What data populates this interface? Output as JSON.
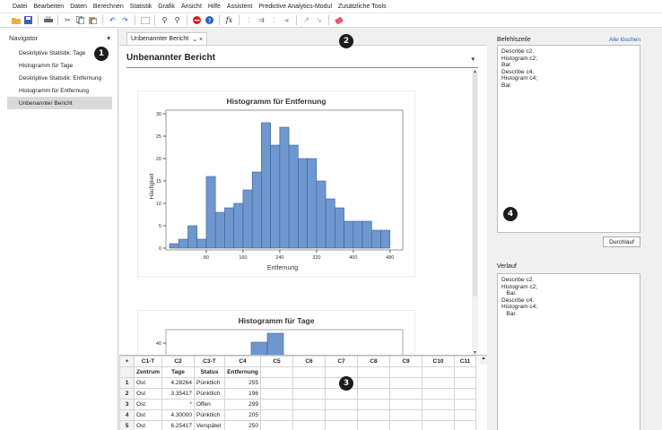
{
  "menu": [
    "Datei",
    "Bearbeiten",
    "Daten",
    "Berechnen",
    "Statistik",
    "Grafik",
    "Ansicht",
    "Hilfe",
    "Assistent",
    "Predictive Analytics-Modul",
    "Zusätzliche Tools"
  ],
  "toolbar": {
    "icons": [
      "open",
      "save",
      "print",
      "cut",
      "copy",
      "paste",
      "undo",
      "redo",
      "window",
      "find",
      "find-next",
      "cancel",
      "help",
      "fx",
      "dist1",
      "dist2",
      "dist3",
      "dist4",
      "arrow1",
      "arrow2",
      "eraser"
    ]
  },
  "navigator": {
    "title": "Navigator",
    "toggle": "▾",
    "items": [
      {
        "label": "Deskriptive Statistik: Tage"
      },
      {
        "label": "Histogramm für Tage"
      },
      {
        "label": "Deskriptive Statistik: Entfernung"
      },
      {
        "label": "Histogramm für Entfernung"
      },
      {
        "label": "Unbenannter Bericht"
      }
    ]
  },
  "main": {
    "tab_label": "Unbenannter Bericht",
    "tab_icons": "⌄ ×",
    "report_title": "Unbenannter Bericht",
    "report_menu": "▾"
  },
  "chart_data": [
    {
      "type": "bar",
      "title": "Histogramm für Entfernung",
      "xlabel": "Entfernung",
      "ylabel": "Häufigkeit",
      "ylim": [
        0,
        30
      ],
      "yticks": [
        "0",
        "5",
        "10",
        "15",
        "20",
        "25",
        "30"
      ],
      "xticks": [
        "80",
        "160",
        "240",
        "320",
        "400",
        "480"
      ],
      "bin_width": 20,
      "x": [
        10,
        30,
        50,
        70,
        90,
        110,
        130,
        150,
        170,
        190,
        210,
        230,
        250,
        270,
        290,
        310,
        330,
        350,
        370,
        390,
        410,
        430,
        450,
        470,
        490
      ],
      "values": [
        1,
        2,
        5,
        2,
        16,
        8,
        9,
        10,
        13,
        17,
        28,
        23,
        27,
        23,
        20,
        20,
        15,
        11,
        9,
        6,
        6,
        6,
        4,
        4,
        0
      ],
      "color": "#6e97d0"
    },
    {
      "type": "bar",
      "title": "Histogramm für Tage",
      "ylabel": "",
      "yticks": [
        "40"
      ],
      "values": [
        40,
        47
      ]
    }
  ],
  "worksheet": {
    "columns": [
      {
        "id": "C1-T",
        "name": "Zentrum"
      },
      {
        "id": "C2",
        "name": "Tage"
      },
      {
        "id": "C3-T",
        "name": "Status"
      },
      {
        "id": "C4",
        "name": "Entfernung"
      },
      {
        "id": "C5",
        "name": ""
      },
      {
        "id": "C6",
        "name": ""
      },
      {
        "id": "C7",
        "name": ""
      },
      {
        "id": "C8",
        "name": ""
      },
      {
        "id": "C9",
        "name": ""
      },
      {
        "id": "C10",
        "name": ""
      },
      {
        "id": "C11",
        "name": ""
      }
    ],
    "rows": [
      {
        "n": "1",
        "c1": "Ost",
        "c2": "4.28264",
        "c3": "Pünktlich",
        "c4": "255"
      },
      {
        "n": "2",
        "c1": "Ost",
        "c2": "3.35417",
        "c3": "Pünktlich",
        "c4": "196"
      },
      {
        "n": "3",
        "c1": "Ost",
        "c2": "*",
        "c3": "Offen",
        "c4": "299"
      },
      {
        "n": "4",
        "c1": "Ost",
        "c2": "4.30000",
        "c3": "Pünktlich",
        "c4": "205"
      },
      {
        "n": "5",
        "c1": "Ost",
        "c2": "6.25417",
        "c3": "Verspätet",
        "c4": "250"
      }
    ]
  },
  "command_line": {
    "label": "Befehlszeile",
    "clear_all": "Alle löschen",
    "text": "Describe c2.\nHistogram c2;\nBar.\nDescribe c4.\nHistogram c4;\nBar.",
    "run_button": "Durchlauf"
  },
  "history": {
    "label": "Verlauf",
    "text": "Describe c2.\nHistogram c2;\n   Bar.\nDescribe c4.\nHistogram c4;\n   Bar."
  },
  "badges": [
    "1",
    "2",
    "3",
    "4"
  ]
}
